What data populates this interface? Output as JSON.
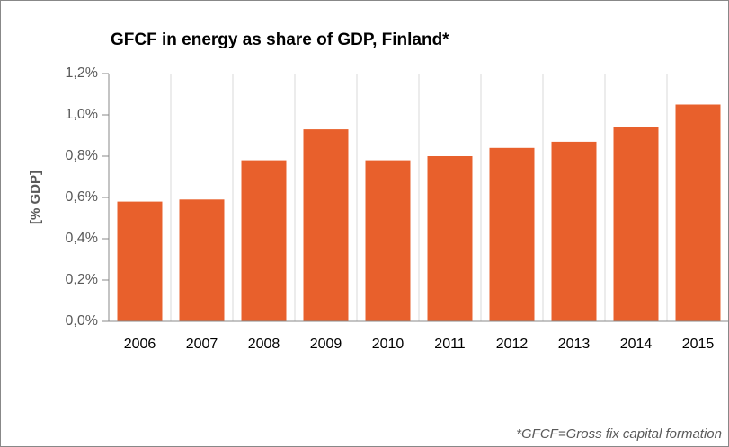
{
  "chart_data": {
    "type": "bar",
    "title": "GFCF in energy as share of GDP, Finland*",
    "y_label": "[% GDP]",
    "footnote": "*GFCF=Gross fix capital formation",
    "categories": [
      "2006",
      "2007",
      "2008",
      "2009",
      "2010",
      "2011",
      "2012",
      "2013",
      "2014",
      "2015"
    ],
    "values": [
      0.58,
      0.59,
      0.78,
      0.93,
      0.78,
      0.8,
      0.84,
      0.87,
      0.94,
      1.05
    ],
    "color": "#e8602c",
    "ylim": [
      0,
      1.2
    ],
    "yticks": [
      {
        "value": 0,
        "label": "0,0%"
      },
      {
        "value": 0.2,
        "label": "0,2%"
      },
      {
        "value": 0.4,
        "label": "0,4%"
      },
      {
        "value": 0.6,
        "label": "0,6%"
      },
      {
        "value": 0.8,
        "label": "0,8%"
      },
      {
        "value": 1.0,
        "label": "1,0%"
      },
      {
        "value": 1.2,
        "label": "1,2%"
      }
    ]
  }
}
